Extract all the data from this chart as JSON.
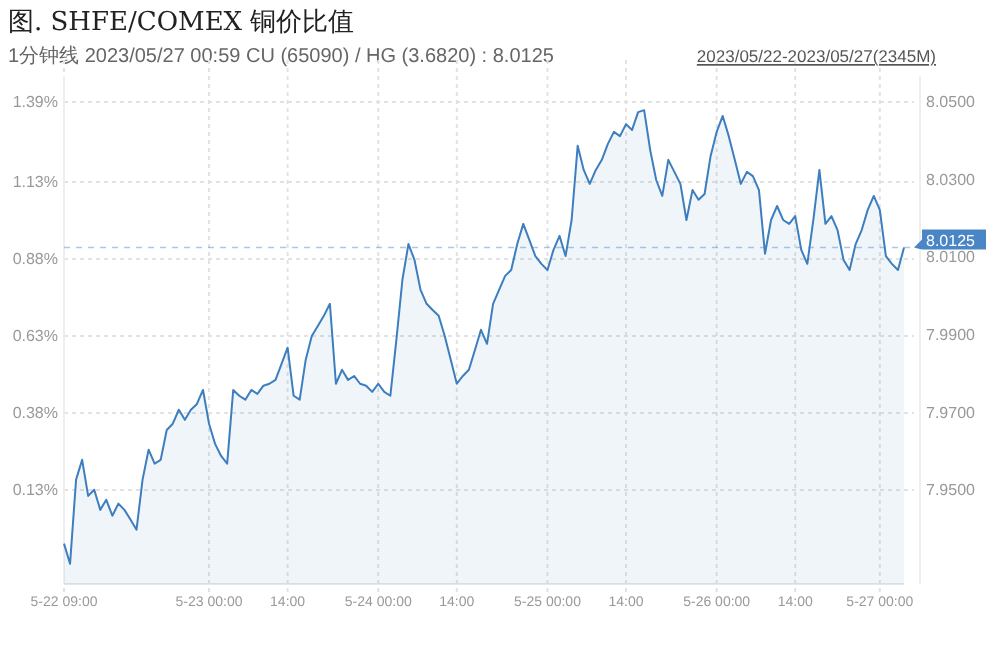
{
  "chart_data": {
    "type": "area",
    "title": "图. SHFE/COMEX 铜价比值",
    "subtitle": "1分钟线 2023/05/27 00:59 CU (65090) / HG (3.6820) : 8.0125",
    "annotations": [
      "2023/05/22-2023/05/27(2345M)"
    ],
    "categories": [
      "5-22 09:00",
      null,
      null,
      null,
      null,
      null,
      null,
      null,
      null,
      null,
      null,
      null,
      null,
      null,
      null,
      null,
      null,
      null,
      null,
      null,
      null,
      null,
      null,
      null,
      "5-23 00:00",
      null,
      null,
      null,
      null,
      null,
      null,
      null,
      null,
      null,
      null,
      null,
      null,
      "14:00",
      null,
      null,
      null,
      null,
      null,
      null,
      null,
      null,
      null,
      null,
      null,
      null,
      null,
      null,
      "5-24 00:00",
      null,
      null,
      null,
      null,
      null,
      null,
      null,
      null,
      null,
      null,
      null,
      null,
      "14:00",
      null,
      null,
      null,
      null,
      null,
      null,
      null,
      null,
      null,
      null,
      null,
      null,
      null,
      null,
      "5-25 00:00",
      null,
      null,
      null,
      null,
      null,
      null,
      null,
      null,
      null,
      null,
      null,
      null,
      "14:00",
      null,
      null,
      null,
      null,
      null,
      null,
      null,
      null,
      null,
      null,
      null,
      null,
      null,
      null,
      "5-26 00:00",
      null,
      null,
      null,
      null,
      null,
      null,
      null,
      null,
      null,
      null,
      null,
      null,
      "14:00",
      null,
      null,
      null,
      null,
      null,
      null,
      null,
      null,
      null,
      null,
      null,
      null,
      null,
      "5-27 00:00",
      null,
      null,
      null,
      null
    ],
    "series": [
      {
        "color": "#3d7ebf",
        "axis": "y2",
        "values": [
          7.9362,
          7.931,
          7.9527,
          7.9578,
          7.9485,
          7.9501,
          7.9449,
          7.9475,
          7.9434,
          7.9465,
          7.9449,
          7.9424,
          7.9398,
          7.9527,
          7.9604,
          7.9568,
          7.9578,
          7.9655,
          7.9671,
          7.9707,
          7.9681,
          7.9707,
          7.9722,
          7.9758,
          7.9671,
          7.9619,
          7.9588,
          7.9568,
          7.9758,
          7.9743,
          7.9733,
          7.9758,
          7.9748,
          7.9769,
          7.9774,
          7.9784,
          7.9825,
          7.9867,
          7.9743,
          7.9733,
          7.9836,
          7.9897,
          7.9923,
          7.9949,
          7.998,
          7.9774,
          7.981,
          7.9784,
          7.9794,
          7.9774,
          7.9769,
          7.9753,
          7.9774,
          7.9753,
          7.9743,
          7.9887,
          8.0042,
          8.0134,
          8.0093,
          8.0016,
          7.998,
          7.9964,
          7.9949,
          7.9897,
          7.9836,
          7.9774,
          7.9794,
          7.981,
          7.9861,
          7.9913,
          7.9877,
          7.998,
          8.0016,
          8.0052,
          8.0067,
          8.0134,
          8.0186,
          8.0145,
          8.0103,
          8.0083,
          8.0067,
          8.0119,
          8.0155,
          8.0103,
          8.0196,
          8.0387,
          8.0325,
          8.0289,
          8.0325,
          8.0351,
          8.0392,
          8.0423,
          8.0412,
          8.0443,
          8.0428,
          8.0474,
          8.0479,
          8.0376,
          8.0299,
          8.0258,
          8.0351,
          8.032,
          8.0289,
          8.0196,
          8.0273,
          8.0248,
          8.0263,
          8.0361,
          8.0423,
          8.0464,
          8.0412,
          8.0351,
          8.0289,
          8.032,
          8.0309,
          8.0273,
          8.0109,
          8.0196,
          8.0232,
          8.0196,
          8.0186,
          8.0206,
          8.0119,
          8.0083,
          8.0196,
          8.0325,
          8.0186,
          8.0206,
          8.017,
          8.0093,
          8.0067,
          8.0134,
          8.017,
          8.0222,
          8.0258,
          8.0222,
          8.0103,
          8.0083,
          8.0067,
          8.0125
        ]
      }
    ],
    "ylim": [
      -0.175,
      1.474
    ],
    "yticks": [
      {
        "value": 0.13,
        "label": "0.13%"
      },
      {
        "value": 0.38,
        "label": "0.38%"
      },
      {
        "value": 0.63,
        "label": "0.63%"
      },
      {
        "value": 0.88,
        "label": "0.88%"
      },
      {
        "value": 1.13,
        "label": "1.13%"
      },
      {
        "value": 1.39,
        "label": "1.39%"
      }
    ],
    "y2lim": [
      7.9258,
      8.0567
    ],
    "y2ticks": [
      {
        "value": 7.95,
        "label": "7.9500"
      },
      {
        "value": 7.97,
        "label": "7.9700"
      },
      {
        "value": 7.99,
        "label": "7.9900"
      },
      {
        "value": 8.01,
        "label": "8.0100"
      },
      {
        "value": 8.03,
        "label": "8.0300"
      },
      {
        "value": 8.05,
        "label": "8.0500"
      }
    ],
    "ref_lines": [
      {
        "axis": "y2",
        "value": 8.0125,
        "label": "8.0125",
        "color": "#4a86c5"
      }
    ],
    "grid": true,
    "line_style": "solid"
  }
}
